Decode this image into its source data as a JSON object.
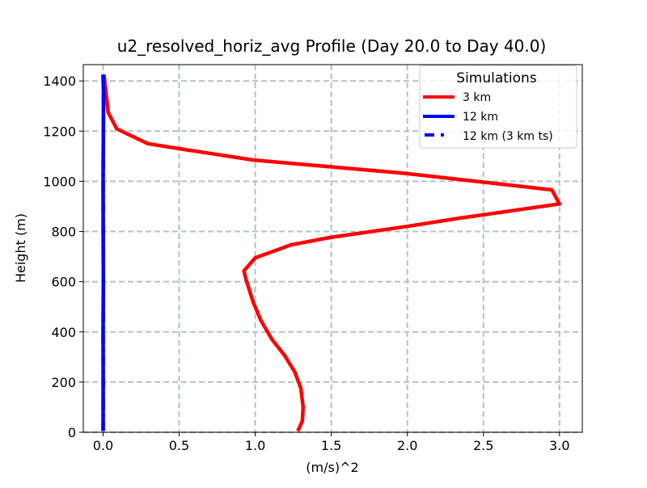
{
  "chart_data": {
    "type": "line",
    "title": "u2_resolved_horiz_avg Profile (Day 20.0 to Day 40.0)",
    "xlabel": "(m/s)^2",
    "ylabel": "Height (m)",
    "xlim": [
      -0.13,
      3.15
    ],
    "ylim": [
      0,
      1465
    ],
    "xticks": [
      0.0,
      0.5,
      1.0,
      1.5,
      2.0,
      2.5,
      3.0
    ],
    "xtick_labels": [
      "0.0",
      "0.5",
      "1.0",
      "1.5",
      "2.0",
      "2.5",
      "3.0"
    ],
    "yticks": [
      0,
      200,
      400,
      600,
      800,
      1000,
      1200,
      1400
    ],
    "ytick_labels": [
      "0",
      "200",
      "400",
      "600",
      "800",
      "1000",
      "1200",
      "1400"
    ],
    "grid": true,
    "legend": {
      "title": "Simulations",
      "placement": "top-right"
    },
    "series": [
      {
        "name": "3 km",
        "color": "#ff0000",
        "style": "solid",
        "x": [
          1.28,
          1.31,
          1.315,
          1.3,
          1.26,
          1.195,
          1.11,
          1.037,
          0.985,
          0.94,
          0.926,
          1.0,
          1.237,
          1.49,
          1.995,
          2.33,
          3.0,
          2.95,
          1.995,
          1.49,
          0.985,
          0.5,
          0.295,
          0.09,
          0.034,
          0.006
        ],
        "y": [
          5,
          45,
          100,
          175,
          240,
          305,
          370,
          446,
          522,
          608,
          643,
          695,
          747,
          776,
          820,
          852,
          910,
          966,
          1031,
          1058,
          1085,
          1130,
          1150,
          1209,
          1274,
          1425
        ]
      },
      {
        "name": "12 km",
        "color": "#0000ff",
        "style": "solid",
        "x": [
          0.0,
          0.001,
          0.0,
          0.002,
          0.001,
          0.0,
          0.002,
          0.003,
          0.0
        ],
        "y": [
          5,
          200,
          400,
          600,
          800,
          1000,
          1200,
          1350,
          1425
        ]
      },
      {
        "name": "12 km (3 km ts)",
        "color": "#0000ff",
        "style": "dashdot",
        "x": [
          0.0,
          0.001,
          0.0,
          0.002,
          0.001,
          0.0,
          0.002,
          0.003,
          0.0
        ],
        "y": [
          5,
          200,
          400,
          600,
          800,
          1000,
          1200,
          1350,
          1425
        ]
      }
    ]
  }
}
